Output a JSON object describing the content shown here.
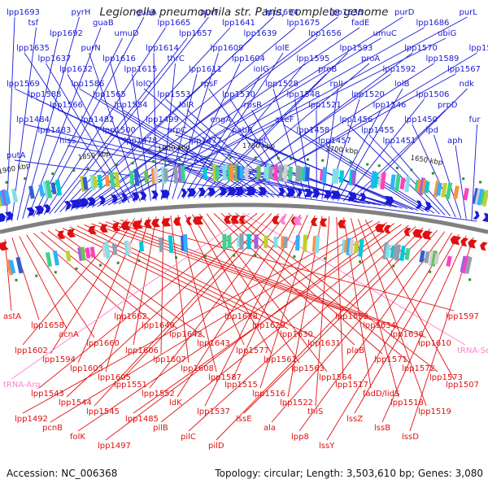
{
  "title": "Legionella pneumophila str. Paris, complete genome",
  "accession_label": "Accession: NC_006368",
  "summary_label": "Topology: circular; Length: 3,503,610 bp; Genes: 3,080",
  "colors": {
    "forward": "#1a1ad8",
    "reverse": "#e01010",
    "trna": "#ff80d0",
    "backbone": "#808080",
    "marker": "#2e8b2e"
  },
  "scale_labels": [
    "1900 kbp",
    "1850 kbp",
    "1800 kbp",
    "1750 kbp",
    "1700 kbp",
    "1650 kbp"
  ],
  "forward_labels": [
    "lpp1693",
    "tsf",
    "lpp1692",
    "pyrH",
    "guaB",
    "umuD",
    "guaA",
    "lpp1665",
    "lpp1657",
    "purF",
    "lpp1641",
    "lpp1639",
    "lpp1694",
    "lpp1675",
    "lpp1656",
    "lpp1638",
    "fadE",
    "umuC",
    "purD",
    "lpp1686",
    "ubiG",
    "purL",
    "lpp1635",
    "lpp1637",
    "lpp1632",
    "purN",
    "lpp1616",
    "lpp1615",
    "lpp1614",
    "thrC",
    "lpp1611",
    "lpp1609",
    "lpp1604",
    "iolG",
    "iolE",
    "lpp1595",
    "proB",
    "lpp1593",
    "proA",
    "lpp1592",
    "lpp1570",
    "lpp1589",
    "lpp1567",
    "lpp1591",
    "lpp1569",
    "lpp1588",
    "lpp1566",
    "lpp1586",
    "lpp1565",
    "lpp1554",
    "lolQ",
    "lpp1553",
    "lolR",
    "rpsF",
    "lpp1530",
    "rpsR",
    "lpp1528",
    "lpp1548",
    "lpp1521",
    "rplI",
    "lpp1520",
    "lpp1546",
    "lolB",
    "lpp1506",
    "prpD",
    "ndk",
    "lpp1484",
    "lpp1483",
    "hisS",
    "lpp1482",
    "lpp1500",
    "lpp1478",
    "lpp1499",
    "prpC",
    "lpp1477",
    "engA",
    "pabB",
    "ppt",
    "aceF",
    "lpp1458",
    "lpp1457",
    "lpp1456",
    "lpp1455",
    "lpp1451",
    "lpp1450",
    "lpd",
    "aph",
    "fur",
    "putA"
  ],
  "reverse_labels": [
    "astA",
    "lpp1658",
    "acnA",
    "lpp1660",
    "lpp1662",
    "lpp1640",
    "lpp1642",
    "lpp1643",
    "lpp1628",
    "lpp1629",
    "lpp1630",
    "lpp1631",
    "lpp1633",
    "lpp1634",
    "lpp1636",
    "lpp1610",
    "lpp1597",
    "lpp1602",
    "lpp1594",
    "lpp1603",
    "lpp1605",
    "lpp1606",
    "lpp1607",
    "lpp1608",
    "lpp1587",
    "lpp1577",
    "lpp1561",
    "lpp1563",
    "lpp1564",
    "plaB",
    "lpp1571",
    "lpp1572",
    "lpp1573",
    "tRNA-Ser",
    "tRNA-Arg",
    "lpp1543",
    "lpp1544",
    "lpp1545",
    "lpp1551",
    "lpp1552",
    "ldK",
    "lpp1537",
    "lpp1515",
    "lpp1516",
    "lpp1522",
    "thiS",
    "lpp1517",
    "fadD/lidS",
    "lpp1518",
    "lpp1519",
    "lpp1507",
    "lpp1492",
    "pcnB",
    "folK",
    "lpp1497",
    "lpp1485",
    "pilB",
    "pilC",
    "pilD",
    "lssE",
    "ala",
    "lpp8",
    "lssY",
    "lssZ",
    "lssB",
    "lssD"
  ]
}
